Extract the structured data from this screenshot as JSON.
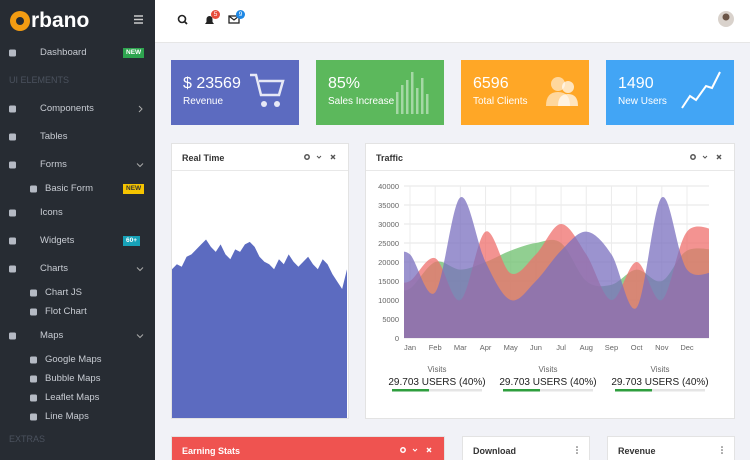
{
  "sidebar": {
    "logo": "rbano",
    "items": [
      {
        "label": "Dashboard",
        "badge": "NEW"
      },
      {
        "label": "UI ELEMENTS"
      },
      {
        "label": "Components"
      },
      {
        "label": "Tables"
      },
      {
        "label": "Forms"
      },
      {
        "label": "Basic Form",
        "badge": "NEW"
      },
      {
        "label": "Icons"
      },
      {
        "label": "Widgets",
        "badge": "60+"
      },
      {
        "label": "Charts"
      },
      {
        "label": "Chart JS"
      },
      {
        "label": "Flot Chart"
      },
      {
        "label": "Maps"
      },
      {
        "label": "Google Maps"
      },
      {
        "label": "Bubble Maps"
      },
      {
        "label": "Leaflet Maps"
      },
      {
        "label": "Line Maps"
      },
      {
        "label": "EXTRAS"
      }
    ]
  },
  "header": {
    "notifications": "5",
    "messages": "9"
  },
  "stats": [
    {
      "value": "$ 23569",
      "label": "Revenue",
      "color": "#5c6bc0"
    },
    {
      "value": "85%",
      "label": "Sales Increase",
      "color": "#5cb85c"
    },
    {
      "value": "6596",
      "label": "Total Clients",
      "color": "#ffa726"
    },
    {
      "value": "1490",
      "label": "New Users",
      "color": "#42a5f5"
    }
  ],
  "realtime": {
    "title": "Real Time",
    "color": "#5c6bc0",
    "ylim": [
      0,
      100
    ],
    "values": [
      60,
      62,
      61,
      65,
      66,
      68,
      70,
      72,
      69,
      67,
      70,
      66,
      64,
      68,
      67,
      70,
      71,
      69,
      65,
      63,
      62,
      60,
      64,
      62,
      66,
      63,
      61,
      63,
      65,
      62,
      60,
      64,
      62,
      58,
      55,
      52,
      60
    ]
  },
  "traffic": {
    "title": "Traffic",
    "type": "area",
    "categories": [
      "Jan",
      "Feb",
      "Mar",
      "Apr",
      "May",
      "Jun",
      "Jul",
      "Aug",
      "Sep",
      "Oct",
      "Nov",
      "Dec"
    ],
    "ylim": [
      0,
      40000
    ],
    "yticks": [
      0,
      5000,
      10000,
      15000,
      20000,
      25000,
      30000,
      35000,
      40000
    ],
    "grid": true,
    "series": [
      {
        "color": "#6cbf6c",
        "values": [
          13000,
          20000,
          18000,
          20000,
          23000,
          25000,
          25000,
          15000,
          14000,
          18000,
          15000,
          23000
        ]
      },
      {
        "color": "#ef6f6c",
        "values": [
          15000,
          21000,
          10000,
          28000,
          17000,
          22000,
          30000,
          22000,
          10000,
          20000,
          10000,
          28000
        ]
      },
      {
        "color": "#7a6fbf",
        "values": [
          22000,
          12000,
          37000,
          20000,
          10000,
          15000,
          23000,
          28000,
          22000,
          8000,
          37000,
          18000
        ]
      }
    ],
    "stats": [
      {
        "label": "Visits",
        "value": "29.703 USERS (40%)"
      },
      {
        "label": "Visits",
        "value": "29.703 USERS (40%)"
      },
      {
        "label": "Visits",
        "value": "29.703 USERS (40%)"
      }
    ]
  },
  "bottom": [
    {
      "title": "Earning Stats"
    },
    {
      "title": "Download"
    },
    {
      "title": "Revenue"
    }
  ]
}
